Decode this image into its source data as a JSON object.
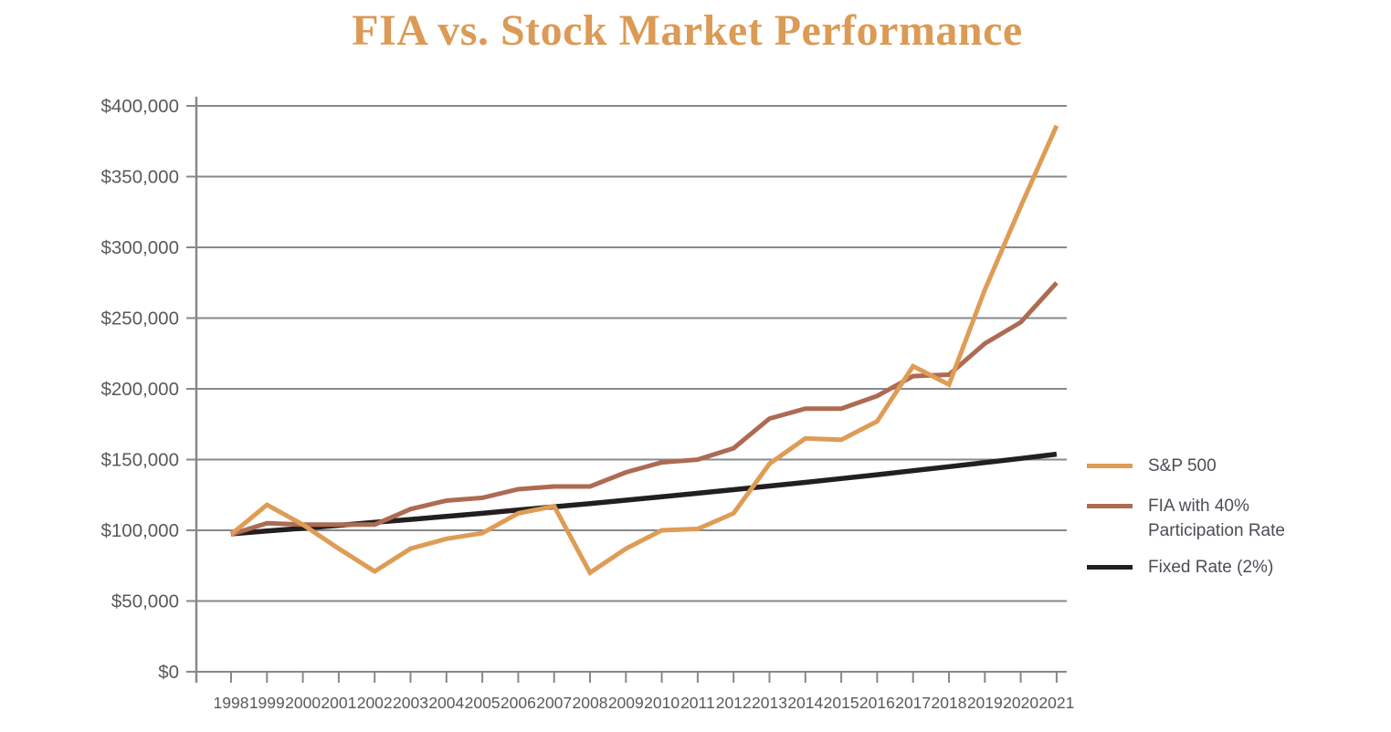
{
  "title": "FIA vs. Stock Market Performance",
  "colors": {
    "title": "#DB9A55",
    "grid": "#87888B",
    "axis_text": "#58595D",
    "legend_text": "#4C4D56"
  },
  "legend": {
    "items": [
      {
        "label": "S&P 500"
      },
      {
        "label": "FIA with 40% Participation Rate"
      },
      {
        "label": "Fixed Rate (2%)"
      }
    ]
  },
  "chart_data": {
    "type": "line",
    "title": "FIA vs. Stock Market Performance",
    "xlabel": "",
    "ylabel": "",
    "x": [
      1998,
      1999,
      2000,
      2001,
      2002,
      2003,
      2004,
      2005,
      2006,
      2007,
      2008,
      2009,
      2010,
      2011,
      2012,
      2013,
      2014,
      2015,
      2016,
      2017,
      2018,
      2019,
      2020,
      2021
    ],
    "ylim": [
      0,
      400000
    ],
    "ytick_step": 50000,
    "ytick_labels": [
      "$0",
      "$50,000",
      "$100,000",
      "$150,000",
      "$200,000",
      "$250,000",
      "$300,000",
      "$350,000",
      "$400,000"
    ],
    "grid": "horizontal",
    "legend_position": "right",
    "series": [
      {
        "name": "S&P 500",
        "color": "#DE9C56",
        "values": [
          97000,
          118000,
          104000,
          87000,
          71000,
          87000,
          94000,
          98000,
          112000,
          117000,
          70000,
          87000,
          100000,
          101000,
          112000,
          147000,
          165000,
          164000,
          177000,
          216000,
          203000,
          270000,
          329000,
          386000
        ]
      },
      {
        "name": "FIA with 40% Participation Rate",
        "color": "#AD6B53",
        "values": [
          97000,
          105000,
          104000,
          104000,
          104000,
          115000,
          121000,
          123000,
          129000,
          131000,
          131000,
          141000,
          148000,
          150000,
          158000,
          179000,
          186000,
          186000,
          195000,
          209000,
          210000,
          232000,
          247000,
          275000
        ]
      },
      {
        "name": "Fixed Rate (2%)",
        "color": "#231F20",
        "values": [
          97500,
          99500,
          101500,
          103500,
          105600,
          107700,
          109800,
          112000,
          114300,
          116600,
          118900,
          121300,
          123700,
          126200,
          128700,
          131300,
          133900,
          136600,
          139300,
          142100,
          145000,
          147900,
          150800,
          153800
        ]
      }
    ]
  }
}
